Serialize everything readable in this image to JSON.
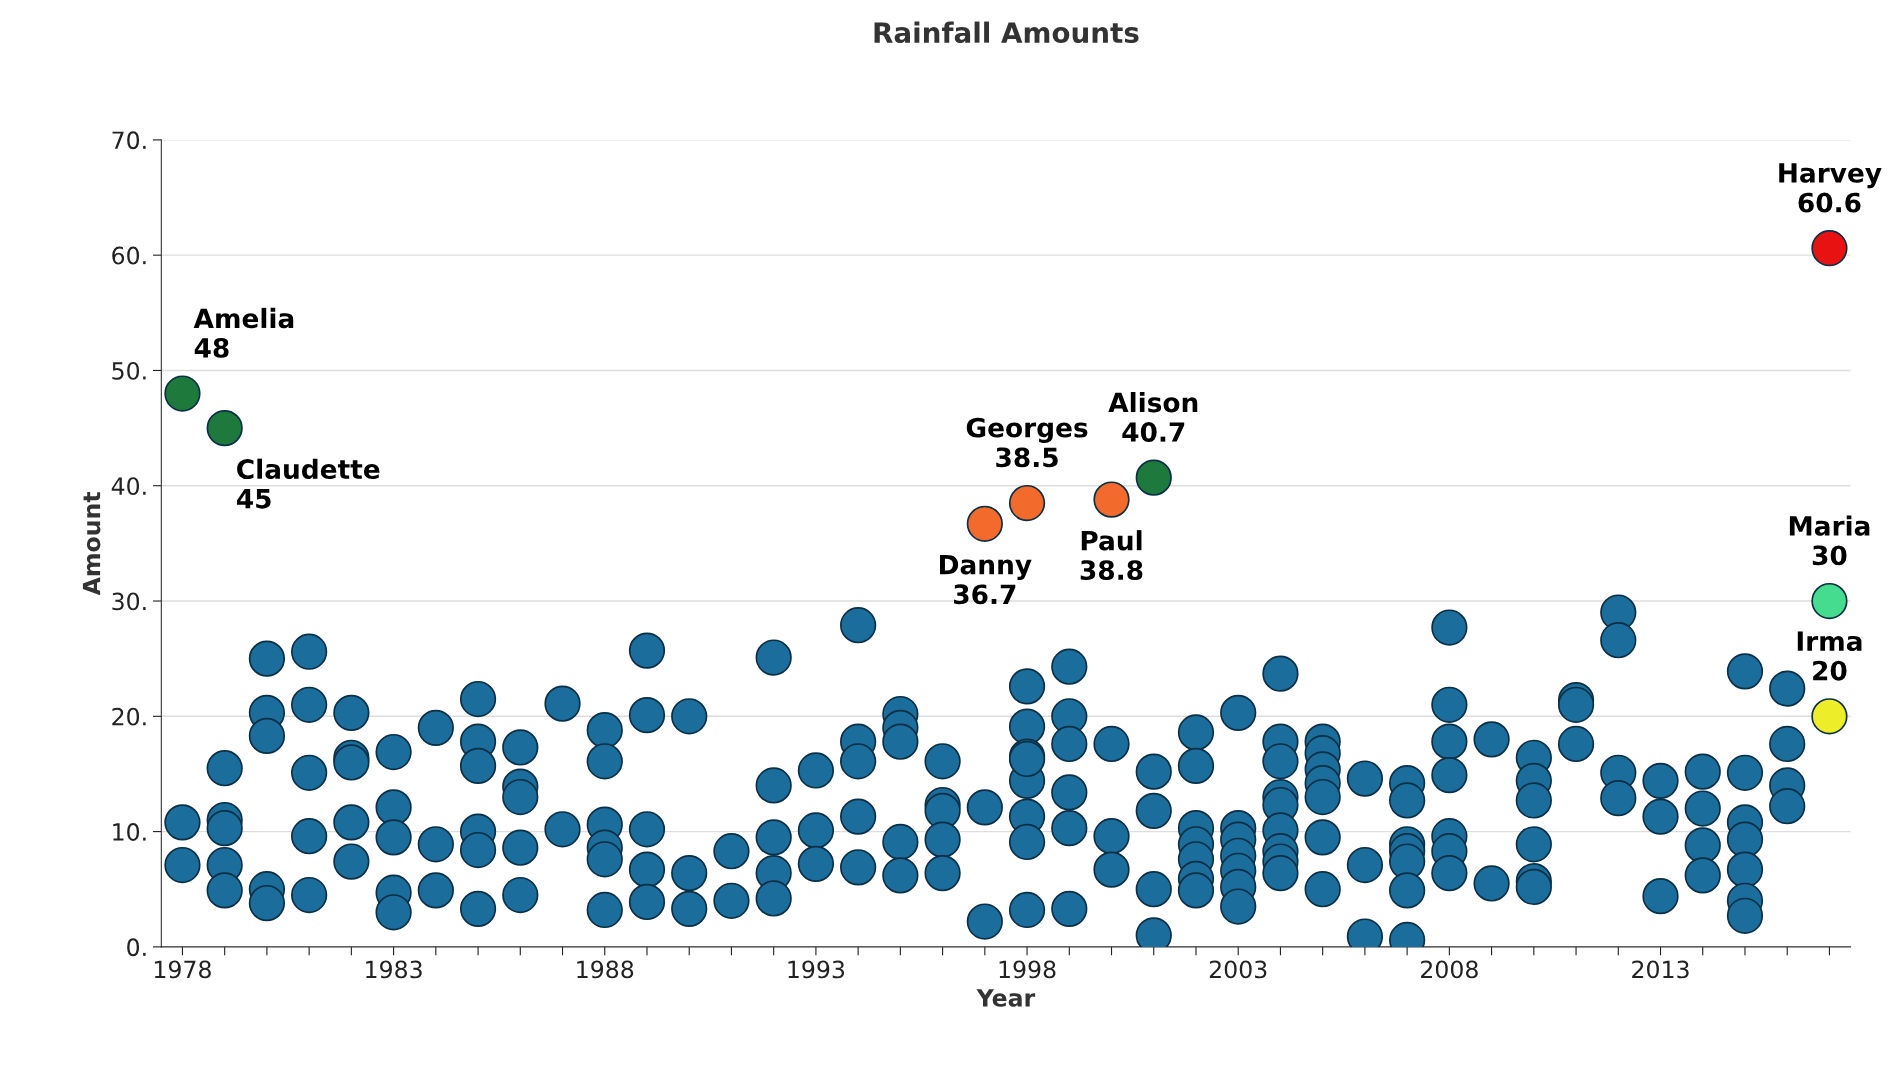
{
  "chart_data": {
    "type": "scatter",
    "title": "Rainfall Amounts",
    "xlabel": "Year",
    "ylabel": "Amount",
    "xlim": [
      1977.5,
      2017.5
    ],
    "ylim": [
      0,
      70
    ],
    "xticks": [
      {
        "value": 1978,
        "label": "1978"
      },
      {
        "value": 1979,
        "label": null
      },
      {
        "value": 1980,
        "label": null
      },
      {
        "value": 1981,
        "label": null
      },
      {
        "value": 1982,
        "label": null
      },
      {
        "value": 1983,
        "label": "1983"
      },
      {
        "value": 1984,
        "label": null
      },
      {
        "value": 1985,
        "label": null
      },
      {
        "value": 1986,
        "label": null
      },
      {
        "value": 1987,
        "label": null
      },
      {
        "value": 1988,
        "label": "1988"
      },
      {
        "value": 1989,
        "label": null
      },
      {
        "value": 1990,
        "label": null
      },
      {
        "value": 1991,
        "label": null
      },
      {
        "value": 1992,
        "label": null
      },
      {
        "value": 1993,
        "label": "1993"
      },
      {
        "value": 1994,
        "label": null
      },
      {
        "value": 1995,
        "label": null
      },
      {
        "value": 1996,
        "label": null
      },
      {
        "value": 1997,
        "label": null
      },
      {
        "value": 1998,
        "label": "1998"
      },
      {
        "value": 1999,
        "label": null
      },
      {
        "value": 2000,
        "label": null
      },
      {
        "value": 2001,
        "label": null
      },
      {
        "value": 2002,
        "label": null
      },
      {
        "value": 2003,
        "label": "2003"
      },
      {
        "value": 2004,
        "label": null
      },
      {
        "value": 2005,
        "label": null
      },
      {
        "value": 2006,
        "label": null
      },
      {
        "value": 2007,
        "label": null
      },
      {
        "value": 2008,
        "label": "2008"
      },
      {
        "value": 2009,
        "label": null
      },
      {
        "value": 2010,
        "label": null
      },
      {
        "value": 2011,
        "label": null
      },
      {
        "value": 2012,
        "label": null
      },
      {
        "value": 2013,
        "label": "2013"
      },
      {
        "value": 2014,
        "label": null
      },
      {
        "value": 2015,
        "label": null
      },
      {
        "value": 2016,
        "label": null
      },
      {
        "value": 2017,
        "label": null
      }
    ],
    "yticks": [
      {
        "value": 0,
        "label": "0."
      },
      {
        "value": 10,
        "label": "10."
      },
      {
        "value": 20,
        "label": "20."
      },
      {
        "value": 30,
        "label": "30."
      },
      {
        "value": 40,
        "label": "40."
      },
      {
        "value": 50,
        "label": "50."
      },
      {
        "value": 60,
        "label": "60."
      },
      {
        "value": 70,
        "label": "70."
      }
    ],
    "grid": "y",
    "legend": false,
    "marker": "circle",
    "series": [
      {
        "color": "#1b6d9c",
        "x": [
          1978,
          1978,
          1979,
          1979,
          1979,
          1979,
          1979,
          1980,
          1980,
          1980,
          1980,
          1980,
          1981,
          1981,
          1981,
          1981,
          1981,
          1982,
          1982,
          1982,
          1982,
          1982,
          1983,
          1983,
          1983,
          1983,
          1983,
          1984,
          1984,
          1984,
          1985,
          1985,
          1985,
          1985,
          1985,
          1985,
          1986,
          1986,
          1986,
          1986,
          1986,
          1987,
          1987,
          1988,
          1988,
          1988,
          1988,
          1988,
          1988,
          1989,
          1989,
          1989,
          1989,
          1989,
          1990,
          1990,
          1990,
          1991,
          1991,
          1992,
          1992,
          1992,
          1992,
          1992,
          1993,
          1993,
          1993,
          1994,
          1994,
          1994,
          1994,
          1994,
          1995,
          1995,
          1995,
          1995,
          1995,
          1996,
          1996,
          1996,
          1996,
          1996,
          1997,
          1997,
          1998,
          1998,
          1998,
          1998,
          1998,
          1998,
          1998,
          1998,
          1999,
          1999,
          1999,
          1999,
          1999,
          1999,
          2000,
          2000,
          2000,
          2001,
          2001,
          2001,
          2001,
          2002,
          2002,
          2002,
          2002,
          2002,
          2002,
          2002,
          2003,
          2003,
          2003,
          2003,
          2003,
          2003,
          2003,
          2004,
          2004,
          2004,
          2004,
          2004,
          2004,
          2004,
          2004,
          2004,
          2005,
          2005,
          2005,
          2005,
          2005,
          2005,
          2005,
          2006,
          2006,
          2006,
          2007,
          2007,
          2007,
          2007,
          2007,
          2007,
          2007,
          2008,
          2008,
          2008,
          2008,
          2008,
          2008,
          2008,
          2009,
          2009,
          2010,
          2010,
          2010,
          2010,
          2010,
          2010,
          2011,
          2011,
          2011,
          2012,
          2012,
          2012,
          2012,
          2013,
          2013,
          2013,
          2014,
          2014,
          2014,
          2014,
          2015,
          2015,
          2015,
          2015,
          2015,
          2015,
          2015,
          2016,
          2016,
          2016,
          2016
        ],
        "values": [
          10.8,
          7.1,
          15.5,
          11.0,
          10.3,
          7.1,
          4.9,
          25.0,
          20.3,
          18.3,
          5.0,
          3.8,
          25.6,
          21.0,
          15.1,
          9.6,
          4.5,
          20.3,
          16.4,
          16.0,
          10.8,
          7.4,
          16.9,
          12.1,
          9.5,
          4.7,
          3.0,
          19.0,
          8.9,
          4.9,
          21.5,
          17.8,
          15.7,
          10.0,
          8.4,
          3.3,
          17.3,
          13.9,
          13.0,
          8.6,
          4.5,
          21.1,
          10.2,
          18.8,
          16.1,
          10.6,
          8.6,
          7.6,
          3.2,
          25.7,
          20.1,
          10.2,
          6.7,
          3.9,
          20.0,
          6.4,
          3.3,
          8.3,
          4.0,
          25.1,
          14.0,
          9.5,
          6.4,
          4.2,
          15.3,
          10.1,
          7.2,
          27.9,
          17.8,
          16.1,
          11.3,
          6.9,
          20.2,
          19.0,
          17.8,
          9.1,
          6.2,
          16.1,
          12.3,
          11.8,
          9.3,
          6.4,
          12.1,
          2.2,
          22.6,
          19.1,
          16.5,
          14.4,
          11.3,
          9.1,
          3.2,
          16.3,
          24.3,
          20.0,
          17.6,
          13.4,
          10.3,
          3.3,
          17.6,
          9.6,
          6.7,
          15.2,
          11.8,
          5.0,
          1.0,
          18.6,
          15.7,
          10.3,
          8.9,
          7.6,
          5.9,
          4.9,
          20.3,
          10.3,
          9.3,
          7.9,
          6.6,
          5.2,
          3.5,
          23.7,
          17.8,
          16.1,
          13.0,
          12.3,
          10.1,
          8.3,
          7.4,
          6.4,
          17.8,
          16.8,
          15.4,
          14.2,
          13.0,
          9.5,
          5.0,
          14.6,
          7.1,
          0.9,
          14.2,
          12.7,
          8.9,
          8.3,
          7.4,
          4.9,
          0.6,
          27.7,
          21.0,
          17.8,
          14.9,
          9.6,
          8.3,
          6.4,
          18.0,
          5.5,
          16.4,
          14.4,
          12.7,
          8.9,
          5.7,
          5.2,
          21.4,
          21.0,
          17.6,
          29.0,
          26.6,
          15.1,
          12.9,
          14.4,
          11.3,
          4.4,
          15.2,
          12.0,
          8.8,
          6.2,
          23.9,
          15.1,
          10.8,
          9.3,
          6.7,
          4.0,
          2.7,
          22.4,
          17.6,
          14.0,
          12.2
        ]
      },
      {
        "color": "#1e7a3c",
        "x": [
          1978,
          1979,
          2001
        ],
        "values": [
          48,
          45,
          40.7
        ]
      },
      {
        "color": "#f26a2c",
        "x": [
          1997,
          1998,
          2000
        ],
        "values": [
          36.7,
          38.5,
          38.8
        ]
      },
      {
        "color": "#e81212",
        "x": [
          2017
        ],
        "values": [
          60.6
        ]
      },
      {
        "color": "#45dc90",
        "x": [
          2017
        ],
        "values": [
          30
        ]
      },
      {
        "color": "#eded2a",
        "x": [
          2017
        ],
        "values": [
          20
        ]
      }
    ],
    "annotations": [
      {
        "text": "Amelia\n48",
        "x": 1978,
        "y": 48
      },
      {
        "text": "Claudette\n45",
        "x": 1979,
        "y": 45
      },
      {
        "text": "Danny\n36.7",
        "x": 1997,
        "y": 36.7
      },
      {
        "text": "Georges\n38.5",
        "x": 1998,
        "y": 38.5
      },
      {
        "text": "Paul\n38.8",
        "x": 2000,
        "y": 38.8
      },
      {
        "text": "Alison\n40.7",
        "x": 2001,
        "y": 40.7
      },
      {
        "text": "Harvey\n60.6",
        "x": 2017,
        "y": 60.6
      },
      {
        "text": "Maria\n30",
        "x": 2017,
        "y": 30
      },
      {
        "text": "Irma\n20",
        "x": 2017,
        "y": 20
      }
    ]
  }
}
